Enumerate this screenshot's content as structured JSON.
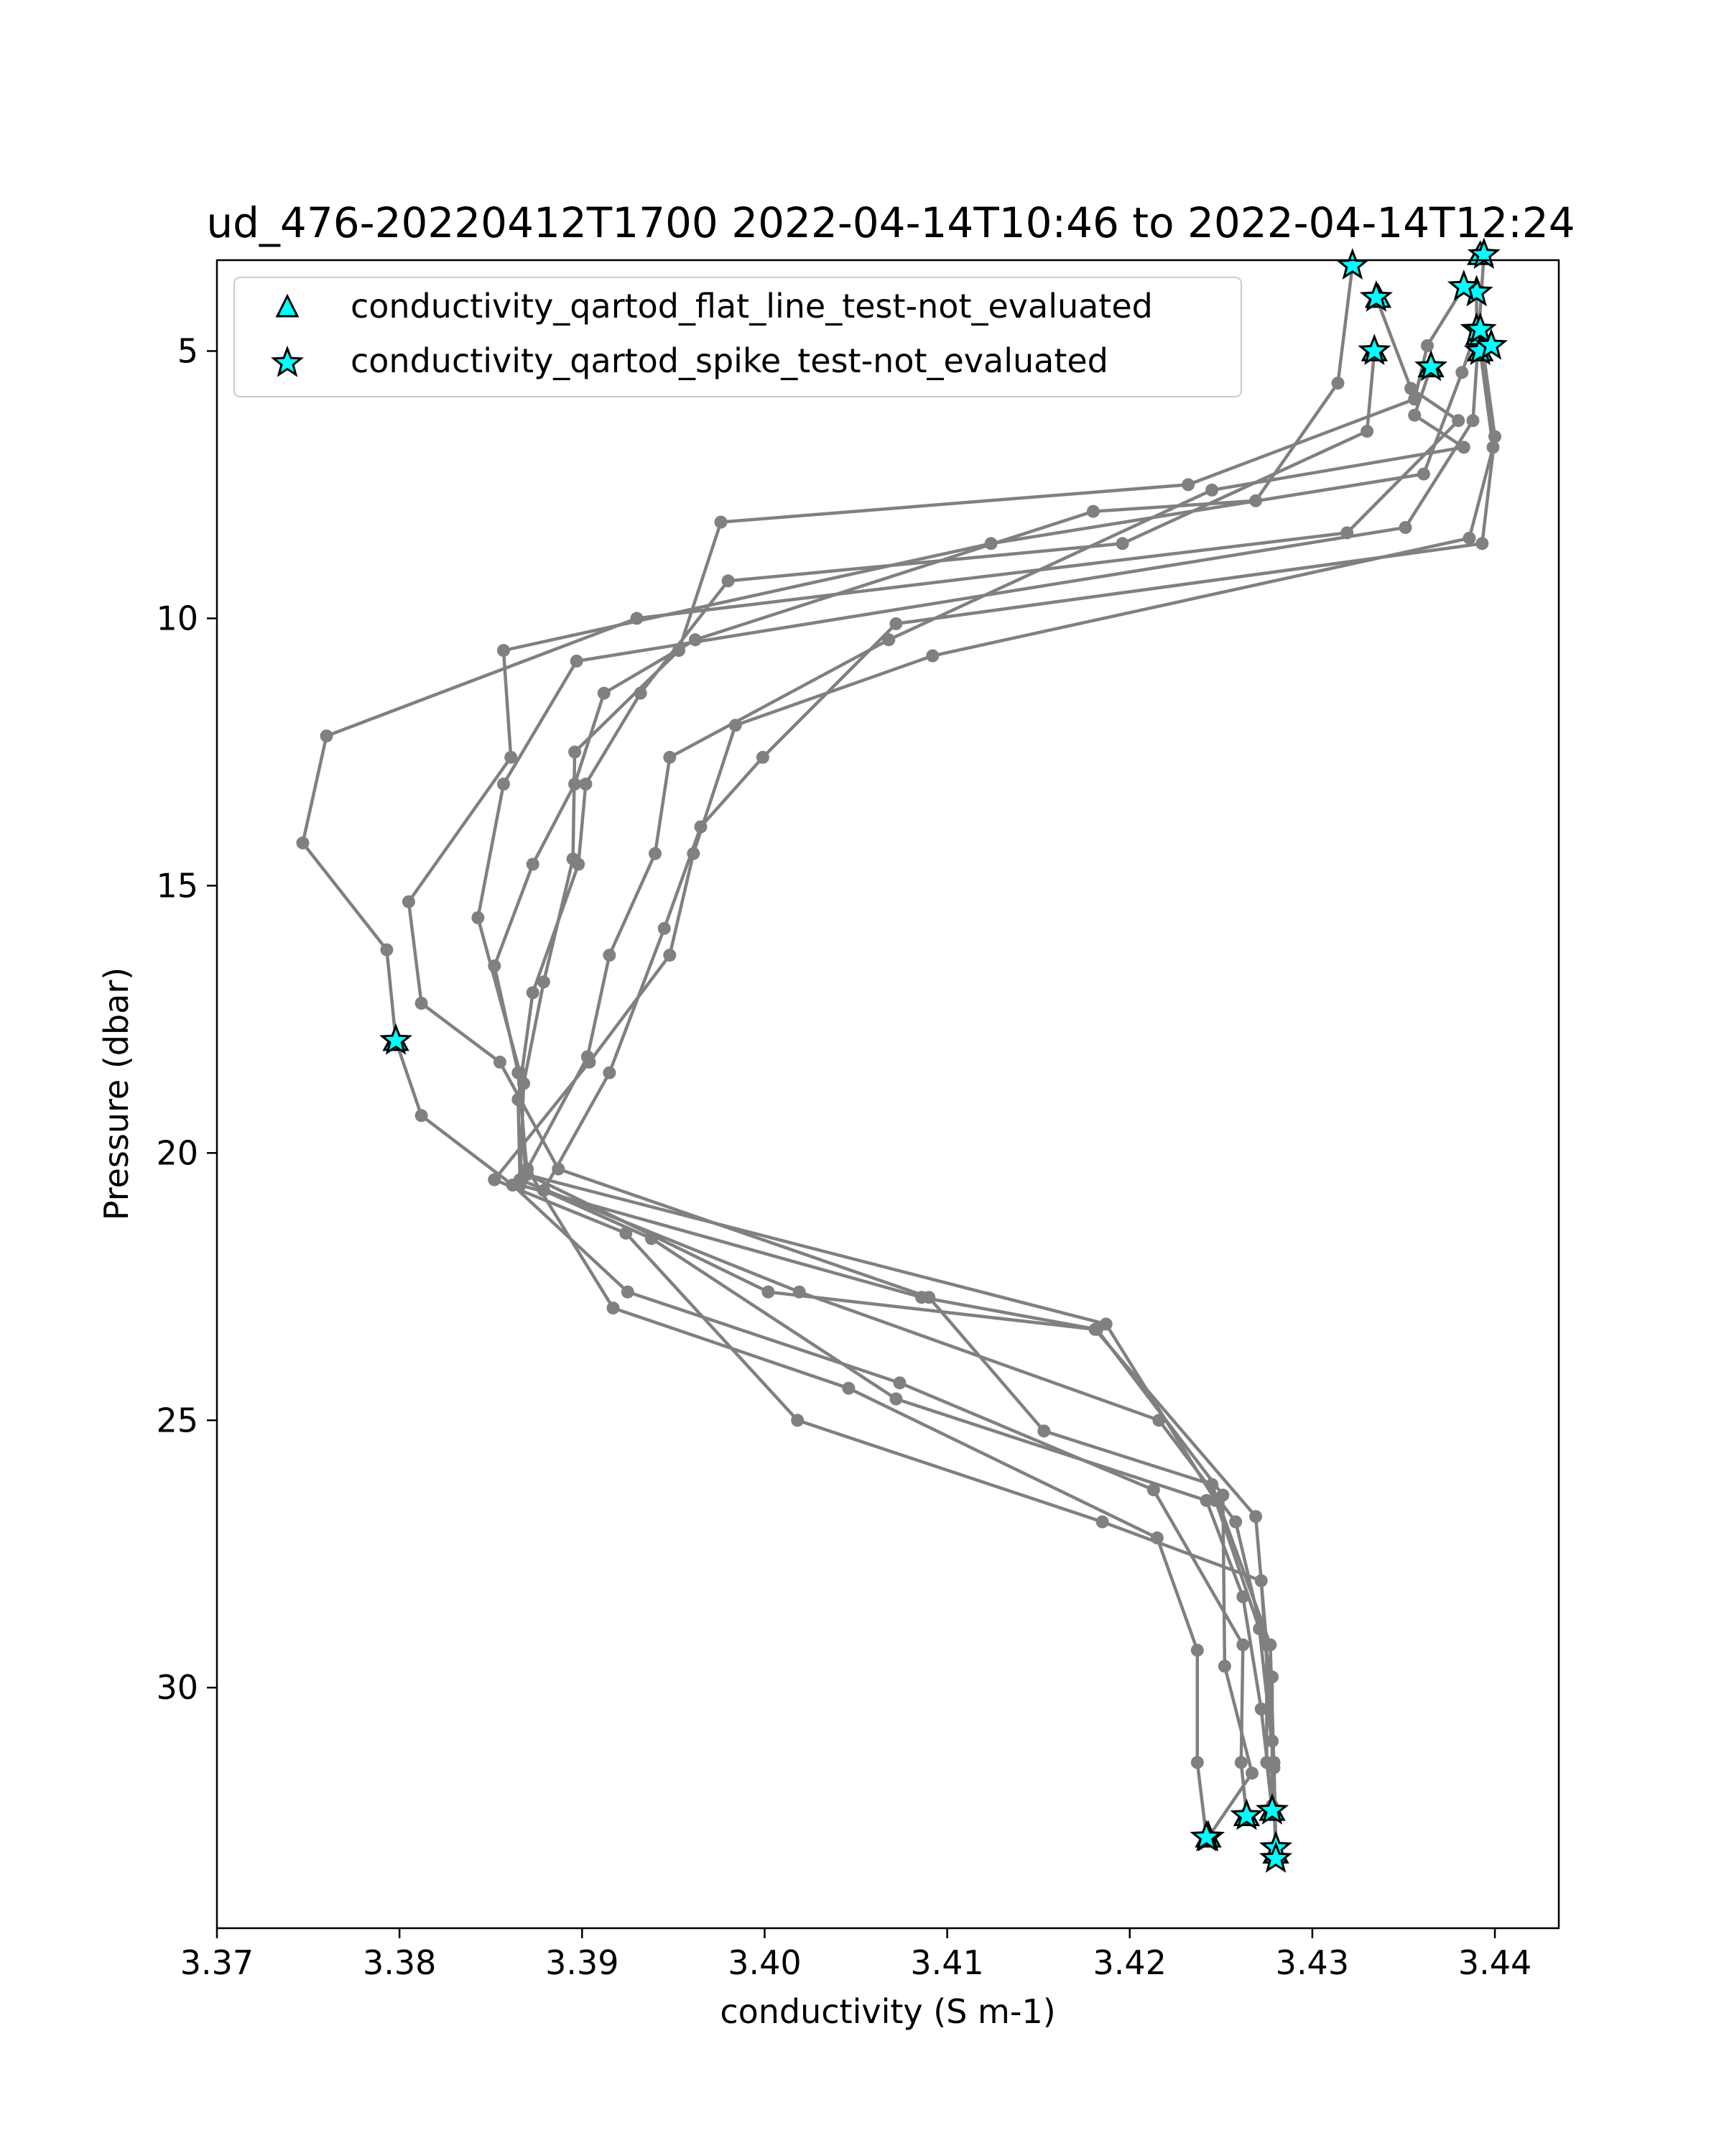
{
  "chart_data": {
    "type": "line",
    "title": "ud_476-20220412T1700 2022-04-14T10:46 to 2022-04-14T12:24",
    "xlabel": "conductivity (S m-1)",
    "ylabel": "Pressure (dbar)",
    "xlim": [
      3.37,
      3.4435
    ],
    "ylim": [
      34.5,
      3.3
    ],
    "y_inverted": true,
    "xticks": [
      "3.37",
      "3.38",
      "3.39",
      "3.40",
      "3.41",
      "3.42",
      "3.43",
      "3.44"
    ],
    "yticks": [
      "5",
      "10",
      "15",
      "20",
      "25",
      "30"
    ],
    "grid": false,
    "line_color": "#808080",
    "marker_color": "#00ffff",
    "legend": {
      "placement": "top-left",
      "entries": [
        {
          "label": "conductivity_qartod_flat_line_test-not_evaluated",
          "marker": "triangle"
        },
        {
          "label": "conductivity_qartod_spike_test-not_evaluated",
          "marker": "star"
        }
      ]
    },
    "series": [
      {
        "values": [
          [
            3.4322,
            3.4
          ],
          [
            3.4314,
            5.6
          ],
          [
            3.4269,
            7.8
          ],
          [
            3.418,
            8.0
          ],
          [
            3.3962,
            10.4
          ],
          [
            3.3912,
            11.4
          ],
          [
            3.3896,
            13.1
          ],
          [
            3.3873,
            14.6
          ],
          [
            3.3852,
            16.5
          ],
          [
            3.3865,
            18.5
          ],
          [
            3.387,
            20.4
          ],
          [
            3.4002,
            22.6
          ],
          [
            3.4181,
            23.3
          ],
          [
            3.4269,
            26.8
          ],
          [
            3.4275,
            29.2
          ],
          [
            3.4275,
            31.4
          ],
          [
            3.4278,
            32.3
          ]
        ]
      },
      {
        "values": [
          [
            3.4335,
            4.0
          ],
          [
            3.4354,
            5.7
          ],
          [
            3.438,
            6.3
          ],
          [
            3.4319,
            8.4
          ],
          [
            3.393,
            10.0
          ],
          [
            3.376,
            12.2
          ],
          [
            3.3747,
            14.2
          ],
          [
            3.3793,
            16.2
          ],
          [
            3.3798,
            17.9
          ],
          [
            3.3812,
            19.3
          ],
          [
            3.3862,
            20.6
          ],
          [
            3.3925,
            22.6
          ],
          [
            3.4074,
            24.3
          ],
          [
            3.4213,
            26.3
          ],
          [
            3.4262,
            29.2
          ],
          [
            3.4261,
            31.4
          ],
          [
            3.4264,
            32.4
          ]
        ]
      },
      {
        "values": [
          [
            3.4394,
            3.2
          ],
          [
            3.4388,
            6.3
          ],
          [
            3.4351,
            8.3
          ],
          [
            3.3897,
            10.8
          ],
          [
            3.3857,
            13.1
          ],
          [
            3.3843,
            15.6
          ],
          [
            3.3866,
            18.5
          ],
          [
            3.3869,
            20.4
          ],
          [
            3.4187,
            23.2
          ],
          [
            3.4247,
            26.5
          ],
          [
            3.4271,
            28.9
          ],
          [
            3.4279,
            31.4
          ],
          [
            3.428,
            33.0
          ]
        ]
      },
      {
        "values": [
          [
            3.439,
            3.9
          ],
          [
            3.439,
            4.6
          ],
          [
            3.4382,
            5.4
          ],
          [
            3.4361,
            7.3
          ],
          [
            3.4124,
            8.6
          ],
          [
            3.3857,
            10.6
          ],
          [
            3.3861,
            12.6
          ],
          [
            3.3805,
            15.3
          ],
          [
            3.3812,
            17.2
          ],
          [
            3.3855,
            18.3
          ],
          [
            3.3887,
            20.3
          ],
          [
            3.409,
            22.7
          ],
          [
            3.4153,
            25.2
          ],
          [
            3.4245,
            26.2
          ],
          [
            3.4277,
            29.2
          ],
          [
            3.4279,
            31.5
          ],
          [
            3.428,
            33.0
          ]
        ]
      },
      {
        "values": [
          [
            3.4383,
            3.8
          ],
          [
            3.4363,
            4.9
          ],
          [
            3.4356,
            5.9
          ],
          [
            3.4232,
            7.5
          ],
          [
            3.3976,
            8.2
          ],
          [
            3.3953,
            10.6
          ],
          [
            3.3896,
            12.5
          ],
          [
            3.3895,
            14.5
          ],
          [
            3.3879,
            16.8
          ],
          [
            3.3868,
            18.7
          ],
          [
            3.3866,
            20.6
          ],
          [
            3.4086,
            22.7
          ],
          [
            3.4182,
            23.3
          ],
          [
            3.4251,
            26.4
          ],
          [
            3.4252,
            29.6
          ],
          [
            3.4267,
            31.6
          ],
          [
            3.4243,
            32.8
          ]
        ]
      },
      {
        "values": [
          [
            3.4334,
            5.0
          ],
          [
            3.433,
            6.5
          ],
          [
            3.4196,
            8.6
          ],
          [
            3.398,
            9.3
          ],
          [
            3.3932,
            11.4
          ],
          [
            3.3902,
            13.1
          ],
          [
            3.3898,
            14.6
          ],
          [
            3.3873,
            17.0
          ],
          [
            3.3865,
            19.0
          ],
          [
            3.3866,
            20.5
          ],
          [
            3.4019,
            22.6
          ],
          [
            3.4216,
            25.0
          ],
          [
            3.4258,
            26.9
          ],
          [
            3.4278,
            29.8
          ],
          [
            3.4278,
            32.3
          ]
        ]
      },
      {
        "values": [
          [
            3.4365,
            5.3
          ],
          [
            3.4356,
            6.2
          ],
          [
            3.4383,
            6.8
          ],
          [
            3.4245,
            7.6
          ],
          [
            3.4068,
            10.4
          ],
          [
            3.3948,
            12.6
          ],
          [
            3.394,
            14.4
          ],
          [
            3.3915,
            16.3
          ],
          [
            3.3903,
            18.2
          ],
          [
            3.387,
            20.3
          ],
          [
            3.3917,
            22.9
          ],
          [
            3.4046,
            24.4
          ],
          [
            3.4215,
            27.2
          ],
          [
            3.4237,
            29.3
          ],
          [
            3.4237,
            31.4
          ],
          [
            3.4242,
            32.8
          ]
        ]
      },
      {
        "values": [
          [
            3.4392,
            5.0
          ],
          [
            3.4399,
            6.8
          ],
          [
            3.4386,
            8.5
          ],
          [
            3.4092,
            10.7
          ],
          [
            3.3984,
            12.0
          ],
          [
            3.3961,
            14.4
          ],
          [
            3.3948,
            16.3
          ],
          [
            3.3904,
            18.3
          ],
          [
            3.3852,
            20.5
          ],
          [
            3.3924,
            21.5
          ],
          [
            3.4018,
            25.0
          ],
          [
            3.4185,
            26.9
          ],
          [
            3.4272,
            28.0
          ],
          [
            3.4278,
            31.0
          ],
          [
            3.428,
            33.2
          ]
        ]
      },
      {
        "values": [
          [
            3.4392,
            4.6
          ],
          [
            3.44,
            6.6
          ],
          [
            3.4393,
            8.6
          ],
          [
            3.4072,
            10.1
          ],
          [
            3.3999,
            12.6
          ],
          [
            3.3965,
            13.9
          ],
          [
            3.3945,
            15.8
          ],
          [
            3.3915,
            18.5
          ],
          [
            3.3879,
            20.7
          ],
          [
            3.3938,
            21.6
          ],
          [
            3.4072,
            24.6
          ],
          [
            3.4242,
            26.5
          ],
          [
            3.4262,
            28.3
          ],
          [
            3.4272,
            30.4
          ],
          [
            3.4278,
            32.2
          ]
        ]
      }
    ],
    "spike_test_points": [
      [
        3.4322,
        3.4
      ],
      [
        3.4335,
        4.0
      ],
      [
        3.4394,
        3.2
      ],
      [
        3.439,
        3.9
      ],
      [
        3.439,
        4.6
      ],
      [
        3.4383,
        3.8
      ],
      [
        3.4334,
        5.0
      ],
      [
        3.4365,
        5.3
      ],
      [
        3.4392,
        5.0
      ],
      [
        3.4392,
        4.6
      ],
      [
        3.4398,
        4.9
      ],
      [
        3.3798,
        17.9
      ],
      [
        3.4278,
        32.3
      ],
      [
        3.4264,
        32.4
      ],
      [
        3.428,
        33.0
      ],
      [
        3.4243,
        32.8
      ],
      [
        3.4242,
        32.8
      ],
      [
        3.428,
        33.2
      ]
    ],
    "flat_line_test_points": [
      [
        3.4336,
        4.0
      ],
      [
        3.4392,
        3.2
      ],
      [
        3.4391,
        4.7
      ],
      [
        3.4334,
        5.0
      ],
      [
        3.4365,
        5.3
      ],
      [
        3.4392,
        5.0
      ],
      [
        3.3798,
        17.9
      ],
      [
        3.4278,
        32.3
      ],
      [
        3.4264,
        32.4
      ],
      [
        3.4243,
        32.8
      ],
      [
        3.428,
        33.1
      ]
    ]
  }
}
